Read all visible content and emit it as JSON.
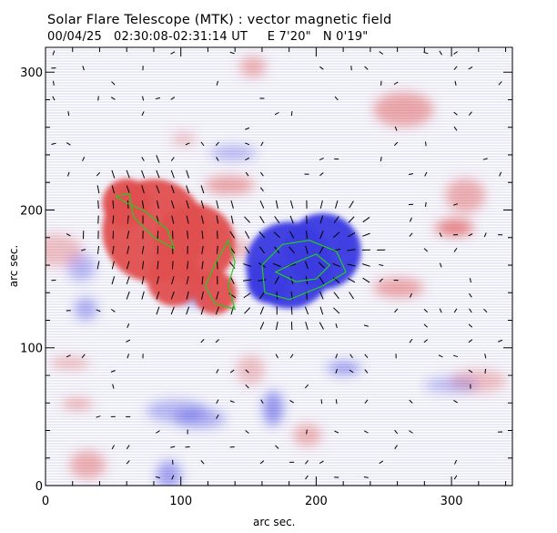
{
  "header": {
    "title": "Solar Flare Telescope (MTK) : vector magnetic field",
    "date": "00/04/25",
    "time_range": "02:30:08-02:31:14 UT",
    "east": "E 7'20\"",
    "north": "N 0'19\""
  },
  "axes": {
    "xlabel": "arc sec.",
    "ylabel": "arc sec.",
    "x_range": [
      0,
      345
    ],
    "y_range": [
      0,
      318
    ],
    "x_ticks": [
      "0",
      "100",
      "200",
      "300"
    ],
    "y_ticks": [
      "0",
      "100",
      "200",
      "300"
    ]
  },
  "legend": {
    "positive_polarity": "#e05050",
    "negative_polarity": "#3a3ae0",
    "contour": "#22cc22",
    "vectors": "#000000"
  },
  "features": {
    "positive_region": [
      {
        "x": 80,
        "y": 185,
        "r": 38
      },
      {
        "x": 60,
        "y": 205,
        "r": 18
      },
      {
        "x": 110,
        "y": 175,
        "r": 30
      },
      {
        "x": 125,
        "y": 140,
        "r": 16
      },
      {
        "x": 95,
        "y": 150,
        "r": 20
      }
    ],
    "negative_region": [
      {
        "x": 180,
        "y": 160,
        "r": 32
      },
      {
        "x": 205,
        "y": 170,
        "r": 28
      },
      {
        "x": 165,
        "y": 148,
        "r": 16
      }
    ]
  }
}
